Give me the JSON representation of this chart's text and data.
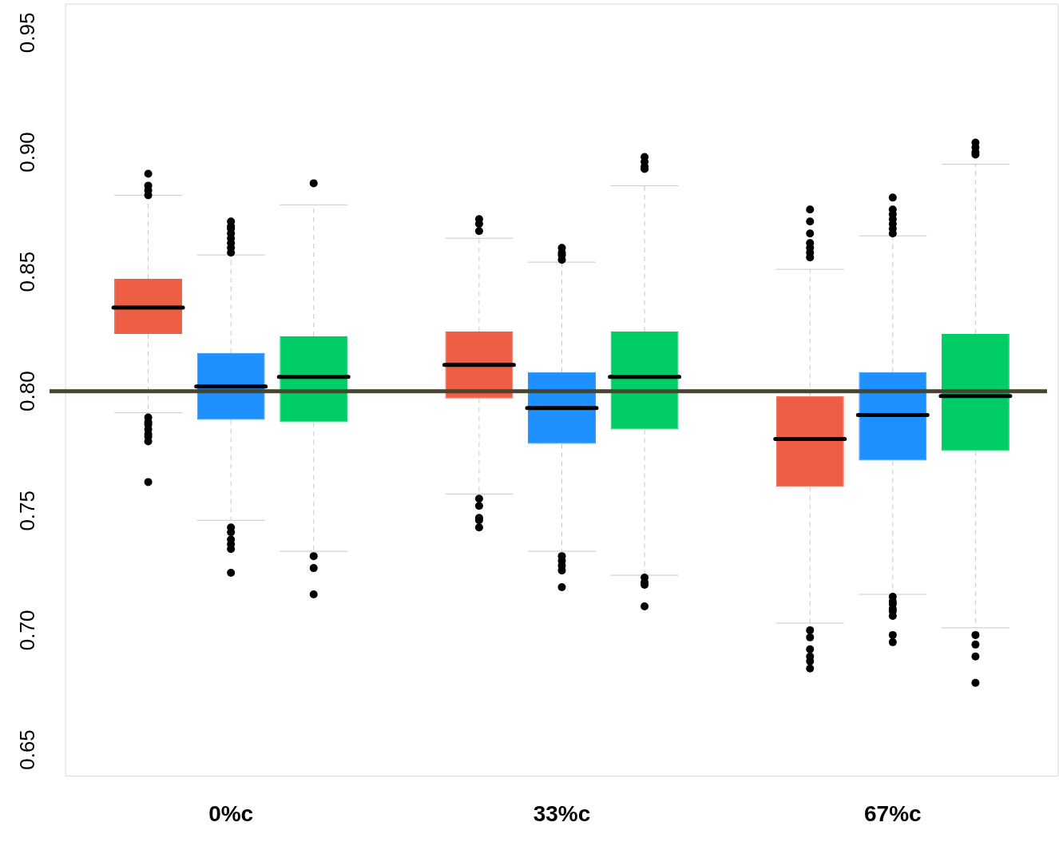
{
  "chart_data": {
    "type": "box",
    "categories": [
      "0%c",
      "33%c",
      "67%c"
    ],
    "ylim": [
      0.639,
      0.962
    ],
    "yticks": [
      {
        "value": 0.65,
        "label": "0.65"
      },
      {
        "value": 0.7,
        "label": "0.70"
      },
      {
        "value": 0.75,
        "label": "0.75"
      },
      {
        "value": 0.8,
        "label": "0.80"
      },
      {
        "value": 0.85,
        "label": "0.85"
      },
      {
        "value": 0.9,
        "label": "0.90"
      },
      {
        "value": 0.95,
        "label": "0.95"
      }
    ],
    "legend": false,
    "series": [
      {
        "color": "#ee5e45",
        "boxes": [
          {
            "low": 0.791,
            "q1": 0.824,
            "median": 0.835,
            "q3": 0.847,
            "high": 0.882,
            "outliers": [
              0.891,
              0.886,
              0.884,
              0.882,
              0.789,
              0.787,
              0.786,
              0.784,
              0.782,
              0.781,
              0.779,
              0.762
            ]
          },
          {
            "low": 0.757,
            "q1": 0.797,
            "median": 0.811,
            "q3": 0.825,
            "high": 0.864,
            "outliers": [
              0.872,
              0.87,
              0.867,
              0.755,
              0.752,
              0.747,
              0.746,
              0.743
            ]
          },
          {
            "low": 0.703,
            "q1": 0.76,
            "median": 0.78,
            "q3": 0.798,
            "high": 0.851,
            "outliers": [
              0.876,
              0.871,
              0.866,
              0.862,
              0.86,
              0.858,
              0.856,
              0.7,
              0.697,
              0.692,
              0.689,
              0.687,
              0.684
            ]
          }
        ]
      },
      {
        "color": "#1e90ff",
        "boxes": [
          {
            "low": 0.746,
            "q1": 0.788,
            "median": 0.802,
            "q3": 0.816,
            "high": 0.857,
            "outliers": [
              0.871,
              0.869,
              0.868,
              0.866,
              0.864,
              0.862,
              0.86,
              0.858,
              0.743,
              0.741,
              0.738,
              0.736,
              0.734,
              0.724
            ]
          },
          {
            "low": 0.733,
            "q1": 0.778,
            "median": 0.793,
            "q3": 0.808,
            "high": 0.854,
            "outliers": [
              0.86,
              0.858,
              0.857,
              0.855,
              0.731,
              0.729,
              0.727,
              0.725,
              0.718
            ]
          },
          {
            "low": 0.715,
            "q1": 0.771,
            "median": 0.79,
            "q3": 0.808,
            "high": 0.865,
            "outliers": [
              0.881,
              0.876,
              0.874,
              0.872,
              0.87,
              0.868,
              0.866,
              0.714,
              0.712,
              0.711,
              0.709,
              0.708,
              0.706,
              0.698,
              0.695
            ]
          }
        ]
      },
      {
        "color": "#00cd66",
        "boxes": [
          {
            "low": 0.733,
            "q1": 0.787,
            "median": 0.806,
            "q3": 0.823,
            "high": 0.878,
            "outliers": [
              0.887,
              0.731,
              0.726,
              0.715
            ]
          },
          {
            "low": 0.723,
            "q1": 0.784,
            "median": 0.806,
            "q3": 0.825,
            "high": 0.886,
            "outliers": [
              0.898,
              0.896,
              0.894,
              0.893,
              0.722,
              0.72,
              0.719,
              0.71
            ]
          },
          {
            "low": 0.701,
            "q1": 0.775,
            "median": 0.798,
            "q3": 0.824,
            "high": 0.895,
            "outliers": [
              0.904,
              0.902,
              0.9,
              0.899,
              0.698,
              0.694,
              0.689,
              0.678
            ]
          }
        ]
      }
    ],
    "ref_lines": [
      {
        "axis": "y",
        "value": 0.8,
        "color": "#47452f"
      }
    ]
  }
}
